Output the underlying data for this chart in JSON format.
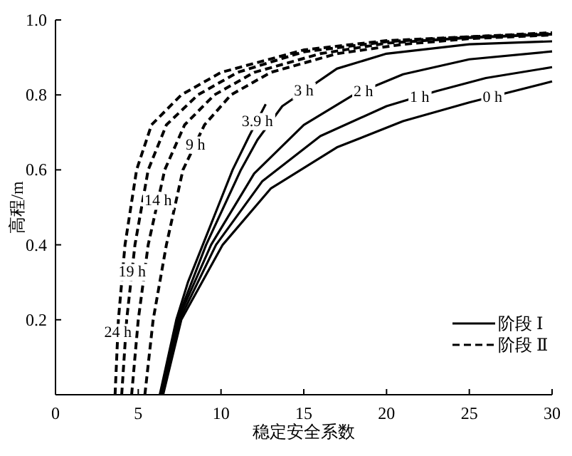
{
  "chart_data": {
    "type": "line",
    "xlabel": "稳定安全系数",
    "ylabel": "高程/m",
    "xlim": [
      0,
      30
    ],
    "xticks": [
      0,
      5,
      10,
      15,
      20,
      25,
      30
    ],
    "ylim": [
      0,
      1
    ],
    "yticks": [
      0.2,
      0.4,
      0.6,
      0.8,
      {
        "value": 1,
        "label": "1.0"
      }
    ],
    "grid": false,
    "series": [
      {
        "color": "#000000",
        "line_style": "solid",
        "x": [
          6.5,
          7.6,
          10.1,
          13,
          17,
          21,
          25,
          30
        ],
        "values": [
          0,
          0.2,
          0.4,
          0.55,
          0.66,
          0.73,
          0.78,
          0.836
        ]
      },
      {
        "color": "#000000",
        "line_style": "solid",
        "x": [
          6.45,
          7.5,
          9.7,
          12.5,
          16,
          20,
          23,
          26,
          30
        ],
        "values": [
          0,
          0.2,
          0.4,
          0.57,
          0.69,
          0.77,
          0.81,
          0.845,
          0.874
        ]
      },
      {
        "color": "#000000",
        "line_style": "solid",
        "x": [
          6.4,
          7.4,
          9.4,
          12,
          15,
          18,
          21,
          25,
          30
        ],
        "values": [
          0,
          0.2,
          0.4,
          0.59,
          0.72,
          0.8,
          0.855,
          0.895,
          0.916
        ]
      },
      {
        "color": "#000000",
        "line_style": "solid",
        "x": [
          6.35,
          7.35,
          9.1,
          11.2,
          12.2,
          13.7,
          17,
          20,
          25,
          30
        ],
        "values": [
          0,
          0.2,
          0.4,
          0.6,
          0.68,
          0.77,
          0.87,
          0.91,
          0.935,
          0.943
        ]
      },
      {
        "color": "#000000",
        "line_style": "solid",
        "x": [
          6.3,
          6.8,
          7.3,
          8.0,
          8.9,
          9.8,
          10.7,
          11.7,
          12.7
        ],
        "values": [
          0,
          0.1,
          0.2,
          0.3,
          0.4,
          0.5,
          0.6,
          0.69,
          0.775
        ]
      },
      {
        "color": "#000000",
        "line_style": "dashed",
        "x": [
          5.4,
          5.9,
          6.7,
          7.7,
          9,
          10.6,
          13,
          17,
          21,
          25,
          30
        ],
        "values": [
          0,
          0.2,
          0.4,
          0.6,
          0.72,
          0.8,
          0.86,
          0.91,
          0.935,
          0.95,
          0.96
        ]
      },
      {
        "color": "#000000",
        "line_style": "dashed",
        "x": [
          4.6,
          5.0,
          5.6,
          6.6,
          7.8,
          9.6,
          12,
          16,
          20,
          25,
          30
        ],
        "values": [
          0,
          0.2,
          0.4,
          0.6,
          0.72,
          0.8,
          0.86,
          0.91,
          0.938,
          0.953,
          0.962
        ]
      },
      {
        "color": "#000000",
        "line_style": "dashed",
        "x": [
          4.0,
          4.3,
          4.8,
          5.6,
          6.7,
          8.6,
          11,
          15,
          20,
          25,
          30
        ],
        "values": [
          0,
          0.2,
          0.4,
          0.6,
          0.72,
          0.8,
          0.86,
          0.915,
          0.942,
          0.955,
          0.964
        ]
      },
      {
        "color": "#000000",
        "line_style": "dashed",
        "x": [
          3.6,
          3.8,
          4.2,
          4.9,
          5.8,
          7.6,
          10,
          15,
          20,
          25,
          30
        ],
        "values": [
          0,
          0.2,
          0.4,
          0.6,
          0.72,
          0.8,
          0.86,
          0.92,
          0.945,
          0.955,
          0.966
        ]
      }
    ],
    "annotations": [
      {
        "text": "0 h",
        "x": 26.4,
        "y": 0.796
      },
      {
        "text": "1 h",
        "x": 22,
        "y": 0.797
      },
      {
        "text": "2 h",
        "x": 18.6,
        "y": 0.811
      },
      {
        "text": "3 h",
        "x": 15,
        "y": 0.814
      },
      {
        "text": "3.9 h",
        "x": 12.2,
        "y": 0.7325
      },
      {
        "text": "9 h",
        "x": 8.46,
        "y": 0.67
      },
      {
        "text": "14 h",
        "x": 6.2,
        "y": 0.52
      },
      {
        "text": "19 h",
        "x": 4.63,
        "y": 0.33
      },
      {
        "text": "24 h",
        "x": 3.77,
        "y": 0.17
      },
      "阶段 Ⅰ",
      "阶段 Ⅱ"
    ]
  }
}
